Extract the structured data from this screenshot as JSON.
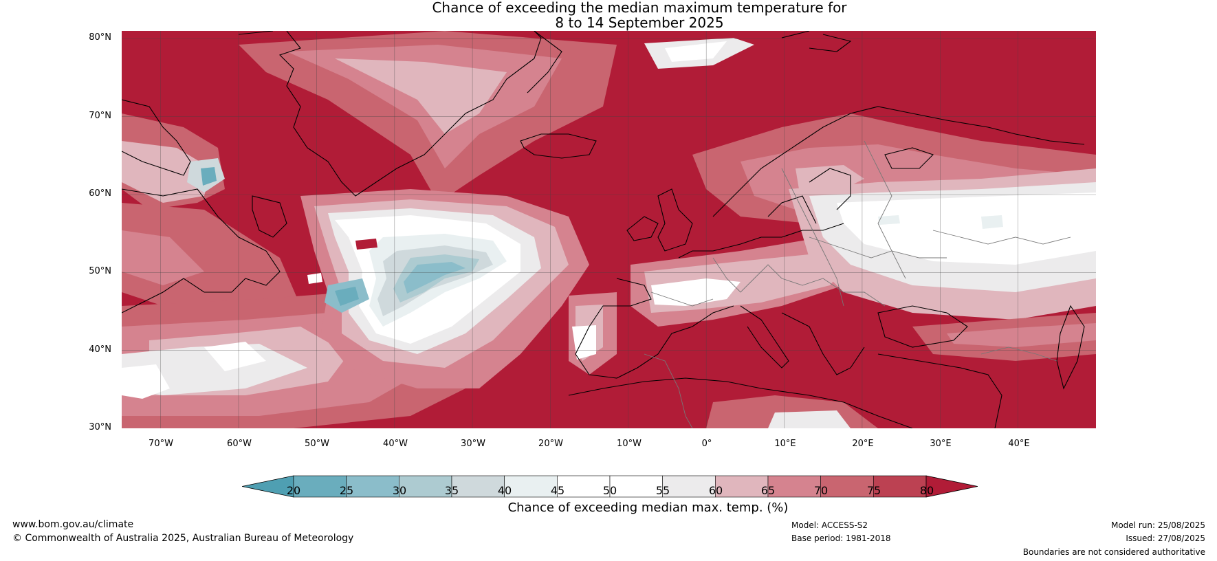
{
  "title": {
    "line1": "Chance of exceeding the median maximum temperature for",
    "line2": "8 to 14 September 2025"
  },
  "map": {
    "lat_labels": [
      "80°N",
      "70°N",
      "60°N",
      "50°N",
      "40°N",
      "30°N"
    ],
    "lon_labels": [
      "70°W",
      "60°W",
      "50°W",
      "40°W",
      "30°W",
      "20°W",
      "10°W",
      "0°",
      "10°E",
      "20°E",
      "30°E",
      "40°E"
    ],
    "extent": {
      "lon": [
        -75,
        50
      ],
      "lat": [
        30,
        81
      ]
    },
    "background_color": "#b11c37"
  },
  "colorbar": {
    "ticks": [
      "20",
      "25",
      "30",
      "35",
      "40",
      "45",
      "50",
      "55",
      "60",
      "65",
      "70",
      "75",
      "80"
    ],
    "colors": [
      "#4f9fb2",
      "#6aadbd",
      "#8bbdca",
      "#adcbd1",
      "#cfd9dc",
      "#e9f0f1",
      "#ffffff",
      "#ffffff",
      "#ecebec",
      "#e0b6bd",
      "#d5838f",
      "#c96570",
      "#bc4152",
      "#b11c37"
    ],
    "label": "Chance of exceeding median max. temp. (%)"
  },
  "footer": {
    "website": "www.bom.gov.au/climate",
    "copyright": "© Commonwealth of Australia 2025, Australian Bureau of Meteorology",
    "model": "Model: ACCESS-S2",
    "base_period": "Base period: 1981-2018",
    "model_run": "Model run: 25/08/2025",
    "issued": "Issued: 27/08/2025",
    "boundaries": "Boundaries are not considered authoritative"
  }
}
